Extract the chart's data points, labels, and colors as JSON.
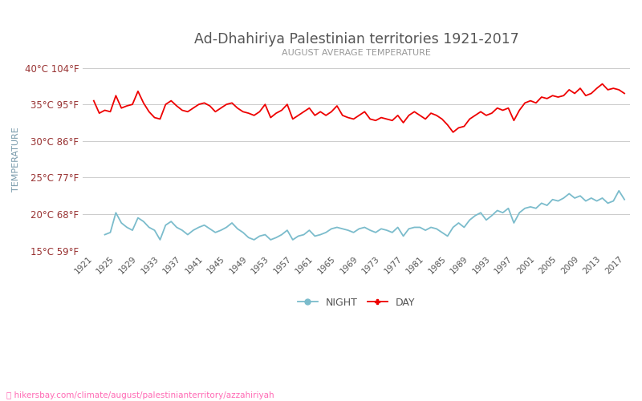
{
  "title": "Ad-Dhahiriya Palestinian territories 1921-2017",
  "subtitle": "AUGUST AVERAGE TEMPERATURE",
  "ylabel": "TEMPERATURE",
  "xlabel_url": "hikersbay.com/climate/august/palestinianterritory/azzahiriyah",
  "years": [
    1921,
    1922,
    1923,
    1924,
    1925,
    1926,
    1927,
    1928,
    1929,
    1930,
    1931,
    1932,
    1933,
    1934,
    1935,
    1936,
    1937,
    1938,
    1939,
    1940,
    1941,
    1942,
    1943,
    1944,
    1945,
    1946,
    1947,
    1948,
    1949,
    1950,
    1951,
    1952,
    1953,
    1954,
    1955,
    1956,
    1957,
    1958,
    1959,
    1960,
    1961,
    1962,
    1963,
    1964,
    1965,
    1966,
    1967,
    1968,
    1969,
    1970,
    1971,
    1972,
    1973,
    1974,
    1975,
    1976,
    1977,
    1978,
    1979,
    1980,
    1981,
    1982,
    1983,
    1984,
    1985,
    1986,
    1987,
    1988,
    1989,
    1990,
    1991,
    1992,
    1993,
    1994,
    1995,
    1996,
    1997,
    1998,
    1999,
    2000,
    2001,
    2002,
    2003,
    2004,
    2005,
    2006,
    2007,
    2008,
    2009,
    2010,
    2011,
    2012,
    2013,
    2014,
    2015,
    2016,
    2017
  ],
  "day_temps": [
    35.5,
    33.8,
    34.2,
    34.0,
    36.2,
    34.5,
    34.8,
    35.0,
    36.8,
    35.2,
    34.0,
    33.2,
    33.0,
    35.0,
    35.5,
    34.8,
    34.2,
    34.0,
    34.5,
    35.0,
    35.2,
    34.8,
    34.0,
    34.5,
    35.0,
    35.2,
    34.5,
    34.0,
    33.8,
    33.5,
    34.0,
    35.0,
    33.2,
    33.8,
    34.2,
    35.0,
    33.0,
    33.5,
    34.0,
    34.5,
    33.5,
    34.0,
    33.5,
    34.0,
    34.8,
    33.5,
    33.2,
    33.0,
    33.5,
    34.0,
    33.0,
    32.8,
    33.2,
    33.0,
    32.8,
    33.5,
    32.5,
    33.5,
    34.0,
    33.5,
    33.0,
    33.8,
    33.5,
    33.0,
    32.2,
    31.2,
    31.8,
    32.0,
    33.0,
    33.5,
    34.0,
    33.5,
    33.8,
    34.5,
    34.2,
    34.5,
    32.8,
    34.2,
    35.2,
    35.5,
    35.2,
    36.0,
    35.8,
    36.2,
    36.0,
    36.2,
    37.0,
    36.5,
    37.2,
    36.2,
    36.5,
    37.2,
    37.8,
    37.0,
    37.2,
    37.0,
    36.5
  ],
  "night_temps": [
    null,
    null,
    17.2,
    17.5,
    20.2,
    18.8,
    18.2,
    17.8,
    19.5,
    19.0,
    18.2,
    17.8,
    16.5,
    18.5,
    19.0,
    18.2,
    17.8,
    17.2,
    17.8,
    18.2,
    18.5,
    18.0,
    17.5,
    17.8,
    18.2,
    18.8,
    18.0,
    17.5,
    16.8,
    16.5,
    17.0,
    17.2,
    16.5,
    16.8,
    17.2,
    17.8,
    16.5,
    17.0,
    17.2,
    17.8,
    17.0,
    17.2,
    17.5,
    18.0,
    18.2,
    18.0,
    17.8,
    17.5,
    18.0,
    18.2,
    17.8,
    17.5,
    18.0,
    17.8,
    17.5,
    18.2,
    17.0,
    18.0,
    18.2,
    18.2,
    17.8,
    18.2,
    18.0,
    17.5,
    17.0,
    18.2,
    18.8,
    18.2,
    19.2,
    19.8,
    20.2,
    19.2,
    19.8,
    20.5,
    20.2,
    20.8,
    18.8,
    20.2,
    20.8,
    21.0,
    20.8,
    21.5,
    21.2,
    22.0,
    21.8,
    22.2,
    22.8,
    22.2,
    22.5,
    21.8,
    22.2,
    21.8,
    22.2,
    21.5,
    21.8,
    23.2,
    22.0
  ],
  "day_color": "#ee0000",
  "night_color": "#7bbccc",
  "bg_color": "#ffffff",
  "grid_color": "#cccccc",
  "title_color": "#555555",
  "subtitle_color": "#999999",
  "ylabel_color": "#7799aa",
  "ytick_color": "#993333",
  "url_color": "#ff69b4",
  "ylim_min": 15,
  "ylim_max": 40,
  "yticks_c": [
    15,
    20,
    25,
    30,
    35,
    40
  ],
  "ytick_labels": [
    "15°C 59°F",
    "20°C 68°F",
    "25°C 77°F",
    "30°C 86°F",
    "35°C 95°F",
    "40°C 104°F"
  ],
  "xticks": [
    1921,
    1925,
    1929,
    1933,
    1937,
    1941,
    1945,
    1949,
    1953,
    1957,
    1961,
    1965,
    1969,
    1973,
    1977,
    1981,
    1985,
    1989,
    1993,
    1997,
    2001,
    2005,
    2009,
    2013,
    2017
  ]
}
